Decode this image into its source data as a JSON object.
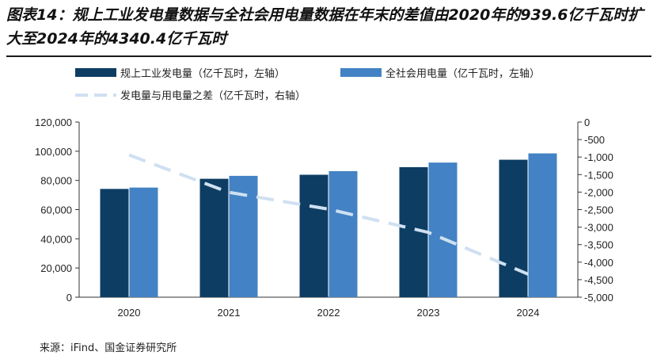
{
  "title": "图表14：规上工业发电量数据与全社会用电量数据在年末的差值由2020年的939.6亿千瓦时扩大至2024年的4340.4亿千瓦时",
  "source": "来源：iFind、国金证券研究所",
  "chart_data": {
    "type": "bar",
    "categories": [
      "2020",
      "2021",
      "2022",
      "2023",
      "2024"
    ],
    "series": [
      {
        "name": "规上工业发电量（亿千瓦时，左轴）",
        "type": "bar",
        "axis": "left",
        "color": "#0d3d63",
        "values": [
          74170,
          81122,
          83886,
          89091,
          94181
        ]
      },
      {
        "name": "全社会用电量（亿千瓦时，左轴）",
        "type": "bar",
        "axis": "left",
        "color": "#4382c4",
        "values": [
          75110,
          83128,
          86372,
          92241,
          98521
        ]
      },
      {
        "name": "发电量与用电量之差（亿千瓦时，右轴）",
        "type": "line",
        "axis": "right",
        "color": "#cfe0f1",
        "values": [
          -939.6,
          -2006,
          -2486,
          -3150,
          -4340.4
        ]
      }
    ],
    "y_left": {
      "min": 0,
      "max": 120000,
      "step": 20000,
      "tick_labels": [
        "0",
        "20,000",
        "40,000",
        "60,000",
        "80,000",
        "100,000",
        "120,000"
      ]
    },
    "y_right": {
      "min": -5000,
      "max": 0,
      "step": 500,
      "tick_labels": [
        "-5,000",
        "-4,500",
        "-4,000",
        "-3,500",
        "-3,000",
        "-2,500",
        "-2,000",
        "-1,500",
        "-1,000",
        "-500",
        "0"
      ]
    },
    "legend_position": "top-left",
    "grid": false
  }
}
